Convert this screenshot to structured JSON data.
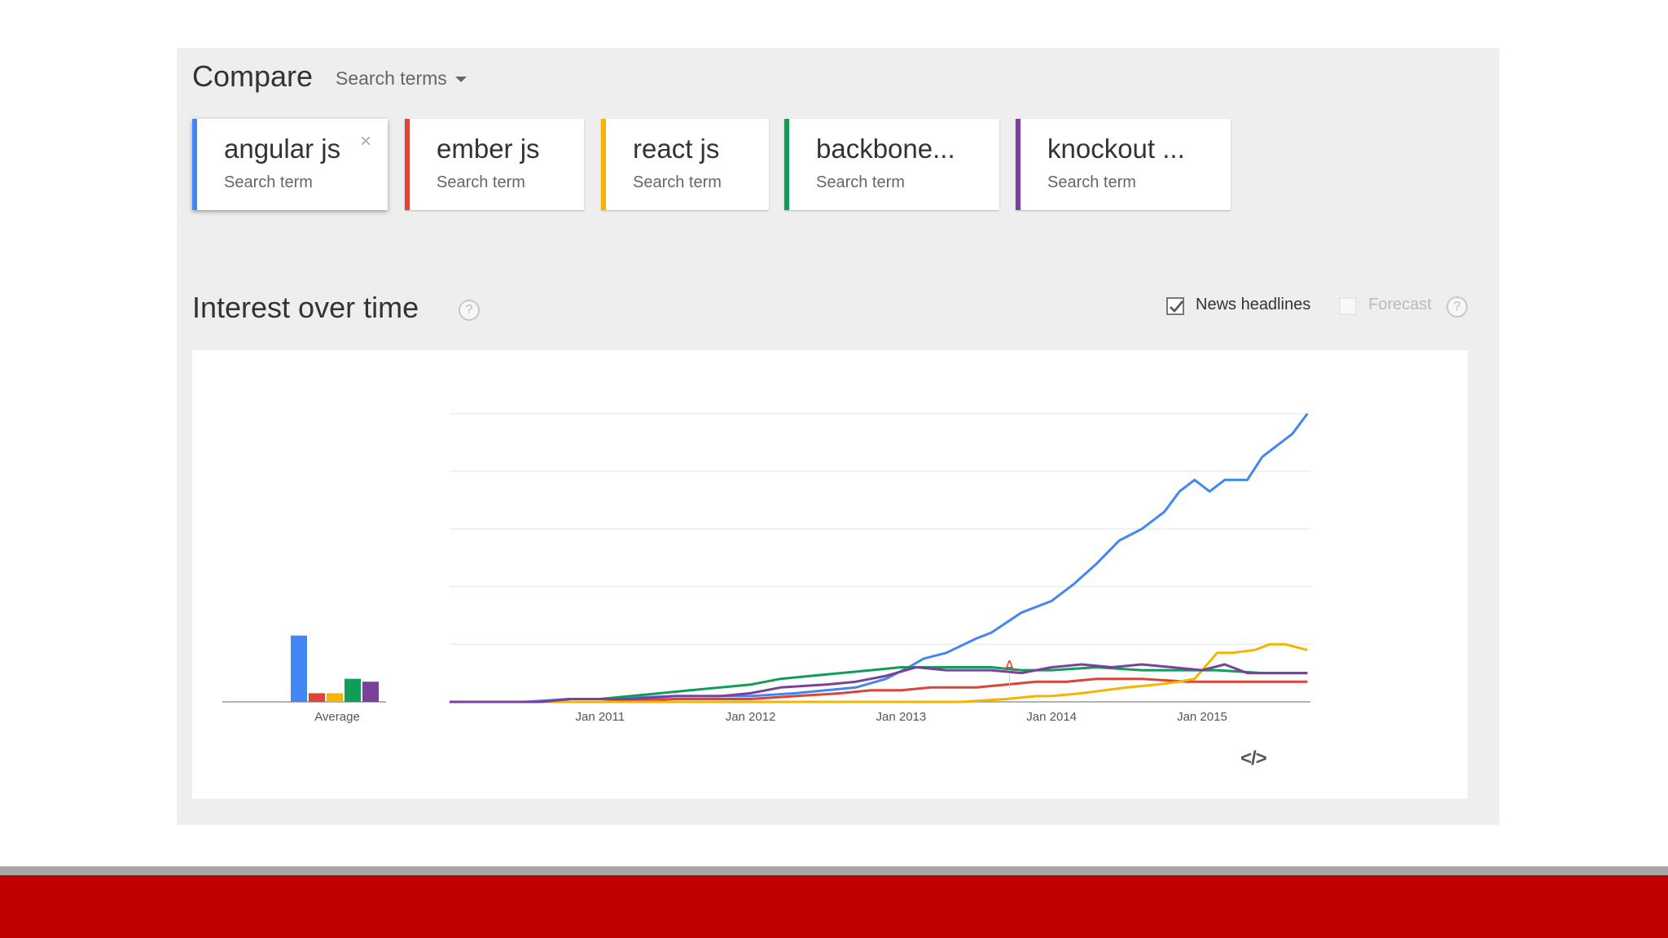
{
  "compare": {
    "title": "Compare",
    "selector_label": "Search terms"
  },
  "terms": [
    {
      "label": "angular js",
      "sub": "Search term",
      "color": "#4285f4",
      "close": "×"
    },
    {
      "label": "ember js",
      "sub": "Search term",
      "color": "#db4437"
    },
    {
      "label": "react js",
      "sub": "Search term",
      "color": "#f4b400"
    },
    {
      "label": "backbone...",
      "sub": "Search term",
      "color": "#0f9d58"
    },
    {
      "label": "knockout ...",
      "sub": "Search term",
      "color": "#7b3f9e"
    }
  ],
  "interest": {
    "title": "Interest over time",
    "help": "?",
    "news_headlines_label": "News headlines",
    "news_headlines_checked": true,
    "forecast_label": "Forecast",
    "forecast_checked": false,
    "embed": "</>"
  },
  "chart_data": {
    "type": "line",
    "x_ticks": [
      "Jan 2011",
      "Jan 2012",
      "Jan 2013",
      "Jan 2014",
      "Jan 2015"
    ],
    "ylim": [
      0,
      100
    ],
    "grid": true,
    "annotation": {
      "label": "A",
      "x": 2013.72,
      "color": "#db4437"
    },
    "average": {
      "label": "Average",
      "values": [
        23,
        3,
        3,
        8,
        7
      ]
    },
    "series": [
      {
        "color": "#4285f4",
        "points": [
          [
            2010.0,
            0
          ],
          [
            2010.5,
            0
          ],
          [
            2010.8,
            1
          ],
          [
            2011.0,
            1
          ],
          [
            2011.5,
            2
          ],
          [
            2011.8,
            2
          ],
          [
            2012.0,
            2
          ],
          [
            2012.3,
            3
          ],
          [
            2012.5,
            4
          ],
          [
            2012.7,
            5
          ],
          [
            2012.9,
            8
          ],
          [
            2013.05,
            12
          ],
          [
            2013.15,
            15
          ],
          [
            2013.3,
            17
          ],
          [
            2013.5,
            22
          ],
          [
            2013.6,
            24
          ],
          [
            2013.8,
            31
          ],
          [
            2014.0,
            35
          ],
          [
            2014.15,
            41
          ],
          [
            2014.3,
            48
          ],
          [
            2014.45,
            56
          ],
          [
            2014.6,
            60
          ],
          [
            2014.75,
            66
          ],
          [
            2014.85,
            73
          ],
          [
            2014.95,
            77
          ],
          [
            2015.05,
            73
          ],
          [
            2015.15,
            77
          ],
          [
            2015.3,
            77
          ],
          [
            2015.4,
            85
          ],
          [
            2015.5,
            89
          ],
          [
            2015.6,
            93
          ],
          [
            2015.7,
            100
          ]
        ]
      },
      {
        "color": "#db4437",
        "points": [
          [
            2010.0,
            0
          ],
          [
            2011.0,
            0
          ],
          [
            2011.5,
            1
          ],
          [
            2012.0,
            1
          ],
          [
            2012.3,
            2
          ],
          [
            2012.6,
            3
          ],
          [
            2012.8,
            4
          ],
          [
            2013.0,
            4
          ],
          [
            2013.2,
            5
          ],
          [
            2013.5,
            5
          ],
          [
            2013.7,
            6
          ],
          [
            2013.9,
            7
          ],
          [
            2014.1,
            7
          ],
          [
            2014.3,
            8
          ],
          [
            2014.6,
            8
          ],
          [
            2014.9,
            7
          ],
          [
            2015.1,
            7
          ],
          [
            2015.5,
            7
          ],
          [
            2015.7,
            7
          ]
        ]
      },
      {
        "color": "#f4b400",
        "points": [
          [
            2010.0,
            0
          ],
          [
            2012.0,
            0
          ],
          [
            2013.0,
            0
          ],
          [
            2013.4,
            0
          ],
          [
            2013.7,
            1
          ],
          [
            2013.9,
            2
          ],
          [
            2014.0,
            2
          ],
          [
            2014.2,
            3
          ],
          [
            2014.35,
            4
          ],
          [
            2014.5,
            5
          ],
          [
            2014.7,
            6
          ],
          [
            2014.85,
            7
          ],
          [
            2014.95,
            8
          ],
          [
            2015.0,
            11
          ],
          [
            2015.1,
            17
          ],
          [
            2015.2,
            17
          ],
          [
            2015.35,
            18
          ],
          [
            2015.45,
            20
          ],
          [
            2015.55,
            20
          ],
          [
            2015.7,
            18
          ]
        ]
      },
      {
        "color": "#0f9d58",
        "points": [
          [
            2010.0,
            0
          ],
          [
            2010.6,
            0
          ],
          [
            2010.8,
            1
          ],
          [
            2011.0,
            1
          ],
          [
            2011.2,
            2
          ],
          [
            2011.4,
            3
          ],
          [
            2011.6,
            4
          ],
          [
            2011.8,
            5
          ],
          [
            2012.0,
            6
          ],
          [
            2012.2,
            8
          ],
          [
            2012.4,
            9
          ],
          [
            2012.6,
            10
          ],
          [
            2012.8,
            11
          ],
          [
            2013.0,
            12
          ],
          [
            2013.2,
            12
          ],
          [
            2013.4,
            12
          ],
          [
            2013.6,
            12
          ],
          [
            2013.8,
            11
          ],
          [
            2014.0,
            11
          ],
          [
            2014.3,
            12
          ],
          [
            2014.6,
            11
          ],
          [
            2014.9,
            11
          ],
          [
            2015.1,
            11
          ],
          [
            2015.4,
            10
          ],
          [
            2015.7,
            10
          ]
        ]
      },
      {
        "color": "#7b3f9e",
        "points": [
          [
            2010.0,
            0
          ],
          [
            2010.6,
            0
          ],
          [
            2010.8,
            1
          ],
          [
            2011.0,
            1
          ],
          [
            2011.2,
            1
          ],
          [
            2011.5,
            2
          ],
          [
            2011.8,
            2
          ],
          [
            2012.0,
            3
          ],
          [
            2012.2,
            5
          ],
          [
            2012.5,
            6
          ],
          [
            2012.7,
            7
          ],
          [
            2012.9,
            9
          ],
          [
            2013.1,
            12
          ],
          [
            2013.3,
            11
          ],
          [
            2013.6,
            11
          ],
          [
            2013.8,
            10
          ],
          [
            2014.0,
            12
          ],
          [
            2014.2,
            13
          ],
          [
            2014.4,
            12
          ],
          [
            2014.6,
            13
          ],
          [
            2014.8,
            12
          ],
          [
            2015.0,
            11
          ],
          [
            2015.15,
            13
          ],
          [
            2015.3,
            10
          ],
          [
            2015.7,
            10
          ]
        ]
      }
    ]
  }
}
